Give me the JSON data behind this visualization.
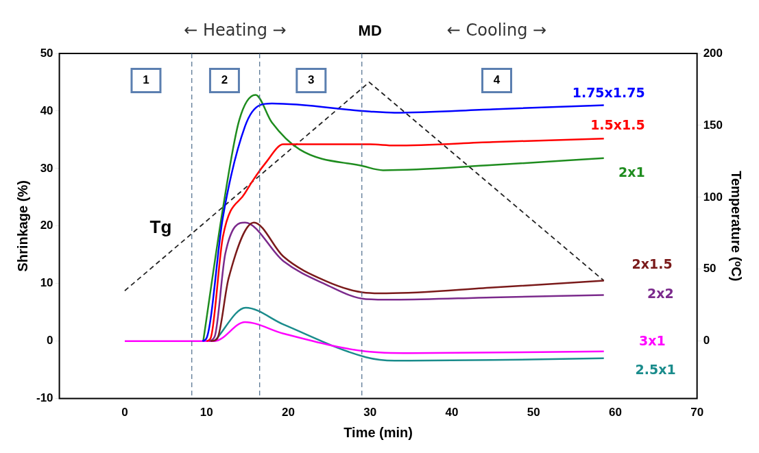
{
  "chart_data": {
    "type": "line",
    "xlabel": "Time (min)",
    "ylabel": "Shrinkage (%)",
    "y2label": "Temperature (ᵒC)",
    "xlim": [
      -8,
      70
    ],
    "xticks": [
      0,
      10,
      20,
      30,
      40,
      50,
      60,
      70
    ],
    "ylim": [
      -10,
      50
    ],
    "yticks": [
      -10,
      0,
      10,
      20,
      30,
      40,
      50
    ],
    "y2lim": [
      -40,
      200
    ],
    "y2ticks": [
      0,
      50,
      100,
      150,
      200
    ],
    "grid": false,
    "legend": false,
    "marker": "none",
    "annotations": [
      "← Heating →",
      "MD",
      "← Cooling →",
      "Tg",
      {
        "text": "1",
        "x": 2.6,
        "y": 45.3
      },
      {
        "text": "2",
        "x": 12.2,
        "y": 45.3
      },
      {
        "text": "3",
        "x": 22.8,
        "y": 45.3
      },
      {
        "text": "4",
        "x": 45.5,
        "y": 45.3
      }
    ],
    "ref_lines": [
      {
        "axis": "x",
        "value": 8.2,
        "color": "#4a6a8a",
        "line_style": "dashed"
      },
      {
        "axis": "x",
        "value": 16.5,
        "color": "#4a6a8a",
        "line_style": "dashed"
      },
      {
        "axis": "x",
        "value": 29,
        "color": "#4a6a8a",
        "line_style": "dashed"
      }
    ],
    "series": [
      {
        "name": "1.75x1.75",
        "color": "#0000ff",
        "x": [
          9.5,
          10,
          12,
          14.7,
          16.5,
          18,
          30,
          33,
          45,
          58.6
        ],
        "values": [
          0,
          0.5,
          21.5,
          37.3,
          41,
          41.3,
          39.9,
          39.7,
          40.3,
          41
        ]
      },
      {
        "name": "1.5x1.5",
        "color": "#ff0000",
        "x": [
          10,
          10.5,
          12,
          14.7,
          17.3,
          19.4,
          30,
          33,
          45,
          58.6
        ],
        "values": [
          0,
          0.5,
          18.1,
          25.7,
          31.1,
          34.2,
          34.2,
          34,
          34.6,
          35.2
        ]
      },
      {
        "name": "2x1",
        "color": "#1e8c1e",
        "x": [
          9.6,
          12,
          14,
          16,
          18,
          21.4,
          29.2,
          31.6,
          45,
          58.6
        ],
        "values": [
          0,
          23,
          38.4,
          42.8,
          38,
          33.3,
          30.4,
          29.7,
          30.6,
          31.8
        ]
      },
      {
        "name": "2x1.5",
        "color": "#7a1a1a",
        "x": [
          10.5,
          11.3,
          12.7,
          15.8,
          19.4,
          24.5,
          29.5,
          32,
          45,
          58.6
        ],
        "values": [
          0,
          0.4,
          10.9,
          20.6,
          14.7,
          10.5,
          8.4,
          8.3,
          9.3,
          10.5
        ]
      },
      {
        "name": "2x2",
        "color": "#7b2a8c",
        "x": [
          10.3,
          11,
          12.3,
          14.7,
          19.4,
          24.5,
          29.5,
          33,
          45,
          58.6
        ],
        "values": [
          0,
          0.8,
          15.2,
          20.6,
          13.9,
          9.9,
          7.3,
          7.2,
          7.6,
          8
        ]
      },
      {
        "name": "3x1",
        "color": "#ff00ff",
        "x": [
          0,
          11,
          14.7,
          19.4,
          29.5,
          35,
          58.6
        ],
        "values": [
          0,
          0,
          3.3,
          1.3,
          -1.8,
          -2.1,
          -1.8
        ]
      },
      {
        "name": "2.5x1",
        "color": "#1a8c8c",
        "x": [
          11,
          14.8,
          19.4,
          29.5,
          33,
          45,
          58.6
        ],
        "values": [
          0,
          5.8,
          2.9,
          -2.8,
          -3.4,
          -3.3,
          -3
        ]
      },
      {
        "color": "#222222",
        "axis": "y2",
        "line_style": "dashed",
        "x": [
          0,
          29.9,
          58.6
        ],
        "values": [
          35,
          180,
          42
        ]
      }
    ]
  }
}
